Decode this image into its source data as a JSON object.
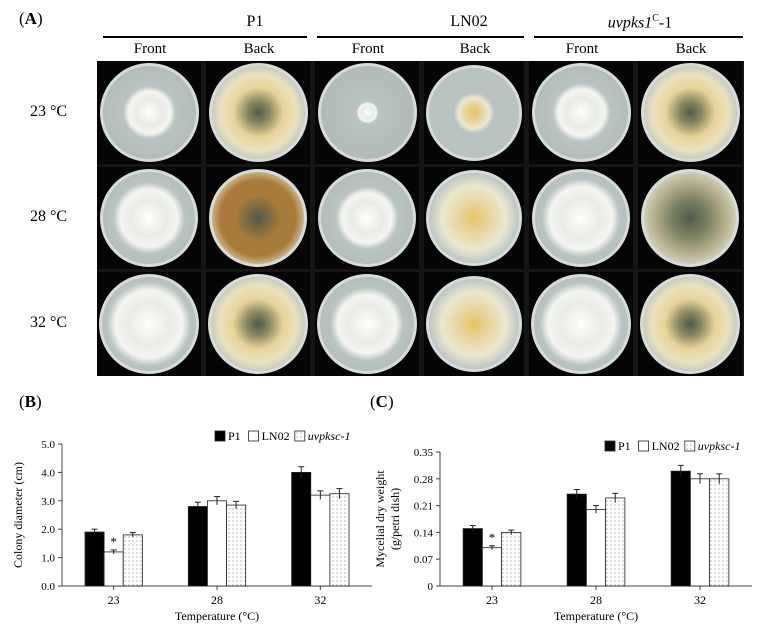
{
  "panel_a": {
    "label": "(A)",
    "strains": [
      {
        "name": "P1"
      },
      {
        "name": "LN02"
      },
      {
        "name_prefix": "uvpks1",
        "name_sup": "C",
        "name_suffix": "-1"
      }
    ],
    "sides": [
      "Front",
      "Back",
      "Front",
      "Back",
      "Front",
      "Back"
    ],
    "temperatures": [
      "23 °C",
      "28 °C",
      "32 °C"
    ]
  },
  "colors": {
    "agar": "#b9c4c2",
    "rim": "#d7dcda",
    "mycelium": "#f4f5f1",
    "back_yellow": "#e6d49a",
    "back_brown": "#a97a3a",
    "back_dark": "#4e5a4a"
  },
  "panel_b": {
    "label": "(B)",
    "chart_data": {
      "type": "bar",
      "categories": [
        "23",
        "28",
        "32"
      ],
      "series": [
        {
          "name": "P1",
          "values": [
            1.9,
            2.8,
            4.0
          ],
          "errors": [
            0.1,
            0.15,
            0.2
          ],
          "fill": "solid"
        },
        {
          "name": "LN02",
          "values": [
            1.2,
            3.0,
            3.2
          ],
          "errors": [
            0.07,
            0.15,
            0.15
          ],
          "fill": "open"
        },
        {
          "name": "uvpksc-1",
          "values": [
            1.8,
            2.85,
            3.25
          ],
          "errors": [
            0.08,
            0.13,
            0.18
          ],
          "fill": "dotted"
        }
      ],
      "xlabel": "Temperature (°C)",
      "ylabel": "Colony diameter (cm)",
      "ylim": [
        0,
        5
      ],
      "yticks": [
        "0.0",
        "1.0",
        "2.0",
        "3.0",
        "4.0",
        "5.0"
      ],
      "annotations": [
        {
          "category": "23",
          "series": "LN02",
          "text": "*"
        }
      ],
      "legend": "top-right",
      "grid": false
    }
  },
  "panel_c": {
    "label": "(C)",
    "chart_data": {
      "type": "bar",
      "categories": [
        "23",
        "28",
        "32"
      ],
      "series": [
        {
          "name": "P1",
          "values": [
            0.15,
            0.24,
            0.3
          ],
          "errors": [
            0.008,
            0.012,
            0.015
          ],
          "fill": "solid"
        },
        {
          "name": "LN02",
          "values": [
            0.1,
            0.2,
            0.28
          ],
          "errors": [
            0.005,
            0.01,
            0.013
          ],
          "fill": "open"
        },
        {
          "name": "uvpksc-1",
          "values": [
            0.14,
            0.23,
            0.28
          ],
          "errors": [
            0.006,
            0.012,
            0.013
          ],
          "fill": "dotted"
        }
      ],
      "xlabel": "Temperature (°C)",
      "ylabel": "Mycelial dry weight",
      "ylabel2": "(g/petri dish)",
      "ylim": [
        0,
        0.35
      ],
      "yticks": [
        "0",
        "0.07",
        "0.14",
        "0.21",
        "0.28",
        "0.35"
      ],
      "annotations": [
        {
          "category": "23",
          "series": "LN02",
          "text": "*"
        }
      ],
      "legend": "top-right",
      "grid": false
    }
  }
}
